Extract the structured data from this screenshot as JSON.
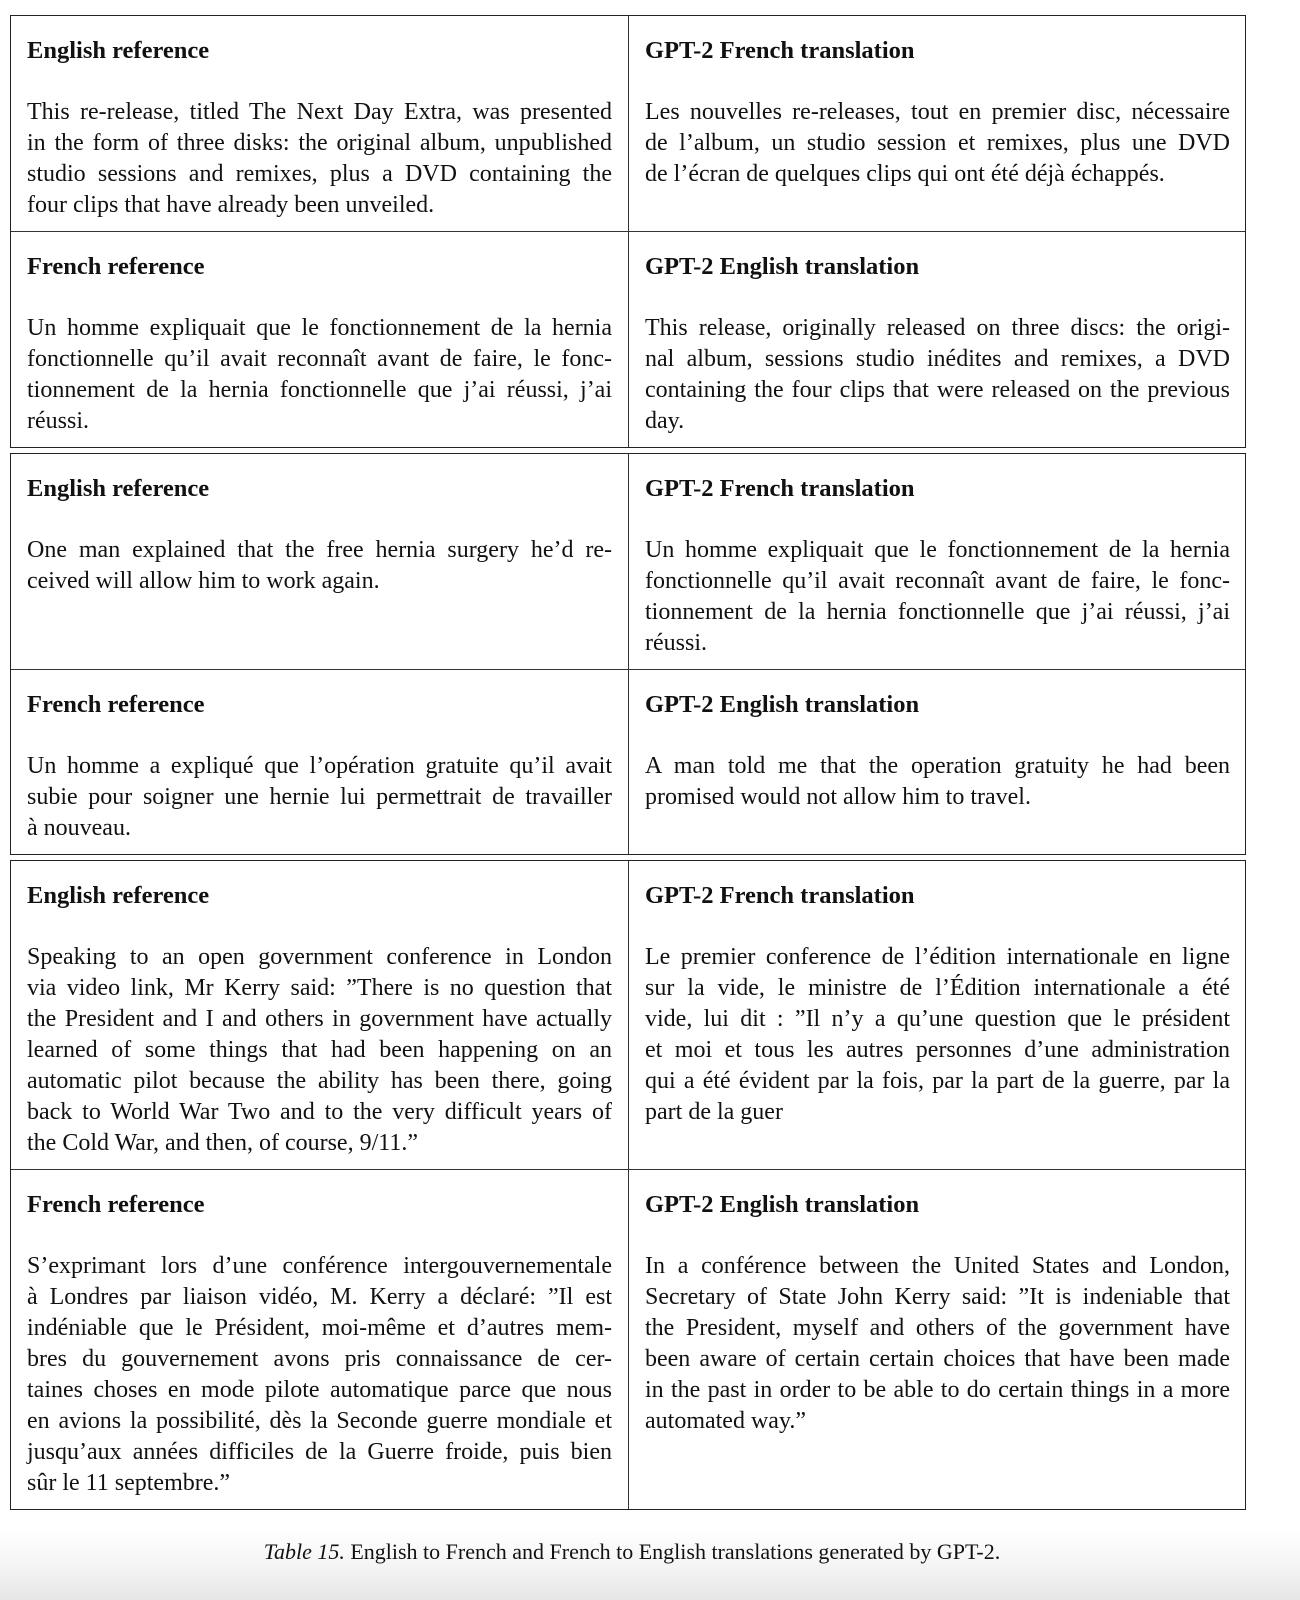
{
  "table": {
    "groups": [
      {
        "rows": [
          {
            "left": {
              "heading": "English reference",
              "lines": [
                "This re-release, titled The Next Day Extra, was presented",
                "in the form of three disks: the original album, unpublished",
                "studio sessions and remixes, plus a DVD containing the",
                "four clips that have already been unveiled."
              ]
            },
            "right": {
              "heading": "GPT-2 French translation",
              "lines": [
                "Les nouvelles re-releases, tout en premier disc, nécessaire",
                "de l’album, un studio session et remixes, plus une DVD",
                "de l’écran de quelques clips qui ont été déjà échappés."
              ]
            }
          },
          {
            "left": {
              "heading": "French reference",
              "lines": [
                "Un homme expliquait que le fonctionnement de la hernia",
                "fonctionnelle qu’il avait reconnaît avant de faire, le fonc-",
                "tionnement de la hernia fonctionnelle que j’ai réussi, j’ai",
                "réussi."
              ]
            },
            "right": {
              "heading": "GPT-2 English translation",
              "lines": [
                "This release, originally released on three discs: the origi-",
                "nal album, sessions studio inédites and remixes, a DVD",
                "containing the four clips that were released on the previous",
                "day."
              ]
            }
          }
        ]
      },
      {
        "rows": [
          {
            "left": {
              "heading": "English reference",
              "lines": [
                "One man explained that the free hernia surgery he’d re-",
                "ceived will allow him to work again."
              ]
            },
            "right": {
              "heading": "GPT-2 French translation",
              "lines": [
                "Un homme expliquait que le fonctionnement de la hernia",
                "fonctionnelle qu’il avait reconnaît avant de faire, le fonc-",
                "tionnement de la hernia fonctionnelle que j’ai réussi, j’ai",
                "réussi."
              ]
            }
          },
          {
            "left": {
              "heading": "French reference",
              "lines": [
                "Un homme a expliqué que l’opération gratuite qu’il avait",
                "subie pour soigner une hernie lui permettrait de travailler",
                "à nouveau."
              ]
            },
            "right": {
              "heading": "GPT-2 English translation",
              "lines": [
                "A man told me that the operation gratuity he had been",
                "promised would not allow him to travel."
              ]
            }
          }
        ]
      },
      {
        "rows": [
          {
            "left": {
              "heading": "English reference",
              "lines": [
                "Speaking to an open government conference in London",
                "via video link, Mr Kerry said: ”There is no question that",
                "the President and I and others in government have actually",
                "learned of some things that had been happening on an",
                "automatic pilot because the ability has been there, going",
                "back to World War Two and to the very difficult years of",
                "the Cold War, and then, of course, 9/11.”"
              ]
            },
            "right": {
              "heading": "GPT-2 French translation",
              "lines": [
                "Le premier conference de l’édition internationale en ligne",
                "sur la vide, le ministre de l’Édition internationale a été",
                "vide, lui dit : ”Il n’y a qu’une question que le président",
                "et moi et tous les autres personnes d’une administration",
                "qui a été évident par la fois, par la part de la guerre, par la",
                "part de la guer"
              ]
            }
          },
          {
            "left": {
              "heading": "French reference",
              "lines": [
                "S’exprimant lors d’une conférence intergouvernementale",
                "à Londres par liaison vidéo, M. Kerry a déclaré: ”Il est",
                "indéniable que le Président, moi-même et d’autres mem-",
                "bres du gouvernement avons pris connaissance de cer-",
                "taines choses en mode pilote automatique parce que nous",
                "en avions la possibilité, dès la Seconde guerre mondiale et",
                "jusqu’aux années difficiles de la Guerre froide, puis bien",
                "sûr le 11 septembre.”"
              ]
            },
            "right": {
              "heading": "GPT-2 English translation",
              "lines": [
                "In a conférence between the United States and London,",
                "Secretary of State John Kerry said: ”It is indeniable that",
                "the President, myself and others of the government have",
                "been aware of certain certain choices that have been made",
                "in the past in order to be able to do certain things in a more",
                "automated way.”"
              ]
            }
          }
        ]
      }
    ]
  },
  "caption": {
    "label": "Table 15.",
    "text": " English to French and French to English translations generated by GPT-2."
  }
}
